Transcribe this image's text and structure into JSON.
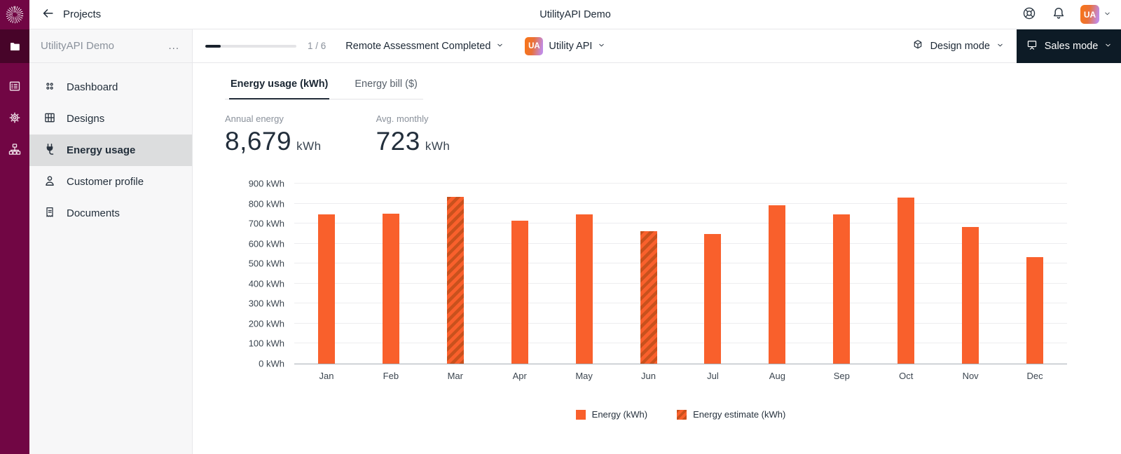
{
  "colors": {
    "rail": "#710644",
    "rail_active": "#470429",
    "accent_orange": "#f9602c",
    "estimate_stripe": "#c9511d",
    "dark_button": "#0d1b26",
    "text_primary": "#1d2936",
    "text_muted": "#8a919b"
  },
  "topbar": {
    "back_label": "Projects",
    "title": "UtilityAPI Demo",
    "avatar_initials": "UA",
    "icons": [
      "help-lifebuoy-icon",
      "bell-icon",
      "avatar-chevron-down-icon"
    ]
  },
  "rail": {
    "icons": [
      "starburst-logo",
      "folder-icon",
      "ledger-icon",
      "gear-icon",
      "sitemap-icon"
    ]
  },
  "sidebar": {
    "project_name": "UtilityAPI Demo",
    "menu_label": "...",
    "items": [
      {
        "label": "Dashboard",
        "icon": "dashboard-dots-icon",
        "active": false
      },
      {
        "label": "Designs",
        "icon": "grid-icon",
        "active": false
      },
      {
        "label": "Energy usage",
        "icon": "plug-icon",
        "active": true
      },
      {
        "label": "Customer profile",
        "icon": "person-icon",
        "active": false
      },
      {
        "label": "Documents",
        "icon": "document-icon",
        "active": false
      }
    ]
  },
  "toolbar": {
    "progress_label": "1 / 6",
    "progress_current": 1,
    "progress_total": 6,
    "status": "Remote Assessment Completed",
    "utility_badge": "UA",
    "utility_name": "Utility API",
    "design_mode_label": "Design mode",
    "sales_mode_label": "Sales mode"
  },
  "tabs": [
    {
      "label": "Energy usage (kWh)",
      "active": true
    },
    {
      "label": "Energy bill ($)",
      "active": false
    }
  ],
  "stats": [
    {
      "label": "Annual energy",
      "value": "8,679",
      "unit": "kWh"
    },
    {
      "label": "Avg. monthly",
      "value": "723",
      "unit": "kWh"
    }
  ],
  "chart_data": {
    "type": "bar",
    "title": "",
    "xlabel": "",
    "ylabel": "kWh",
    "categories": [
      "Jan",
      "Feb",
      "Mar",
      "Apr",
      "May",
      "Jun",
      "Jul",
      "Aug",
      "Sep",
      "Oct",
      "Nov",
      "Dec"
    ],
    "values": [
      745,
      748,
      833,
      716,
      745,
      663,
      647,
      790,
      746,
      830,
      683,
      533
    ],
    "estimate_categories": [
      "Mar",
      "Jun"
    ],
    "series": [
      {
        "name": "Energy (kWh)",
        "style": "solid"
      },
      {
        "name": "Energy estimate (kWh)",
        "style": "hatched"
      }
    ],
    "ylim": [
      0,
      900
    ],
    "ytick_step": 100,
    "ylabel_suffix": " kWh",
    "grid": true,
    "legend_position": "bottom"
  }
}
